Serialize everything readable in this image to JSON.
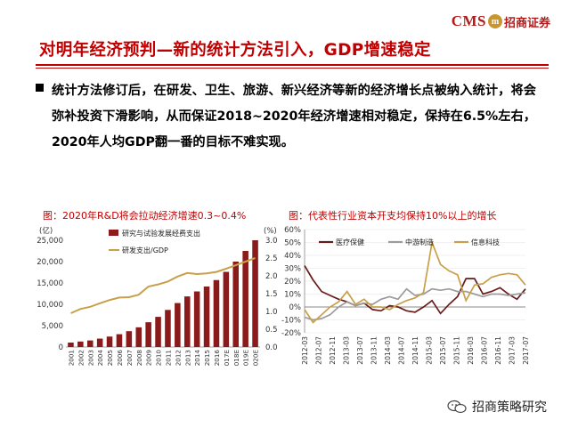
{
  "header": {
    "title": "对明年经济预判—新的统计方法引入，GDP增速稳定",
    "logo_brand": "CMS",
    "logo_mark": "m",
    "logo_cn": "招商证券"
  },
  "body": {
    "bullet_text": "统计方法修订后，在研发、卫生、旅游、新兴经济等新的经济增长点被纳入统计，将会弥补投资下滑影响，从而保证2018~2020年经济增速相对稳定，保持在6.5%左右，2020年人均GDP翻一番的目标不难实现。"
  },
  "watermark": {
    "text": "招商策略研究"
  },
  "colors": {
    "accent": "#c00000",
    "bar": "#8b1a1a",
    "gold": "#c8a04a",
    "gray": "#9b9b9b"
  },
  "chart_data": [
    {
      "type": "bar",
      "caption": "图：2020年R&D将会拉动经济增速0.3~0.4%",
      "left_unit": "(亿)",
      "right_unit": "(%)",
      "categories": [
        "2001",
        "2002",
        "2003",
        "2004",
        "2005",
        "2006",
        "2007",
        "2008",
        "2009",
        "2010",
        "2011",
        "2012",
        "2013",
        "2014",
        "2015",
        "2016",
        "2017E",
        "2018E",
        "2019E",
        "2020E"
      ],
      "ylim": [
        0,
        25000
      ],
      "y_ticks": [
        "0",
        "5,000",
        "10,000",
        "15,000",
        "20,000",
        "25,000"
      ],
      "y2lim": [
        0,
        3.0
      ],
      "y2_ticks": [
        "0.0",
        "0.5",
        "1.0",
        "1.5",
        "2.0",
        "2.5",
        "3.0"
      ],
      "series": [
        {
          "name": "研究与试验发展经费支出",
          "kind": "bar",
          "axis": "left",
          "values": [
            1043,
            1288,
            1540,
            1966,
            2450,
            3003,
            3710,
            4616,
            5802,
            7063,
            8687,
            10298,
            11847,
            13016,
            14170,
            15677,
            17600,
            20000,
            22500,
            25000
          ]
        },
        {
          "name": "研发支出/GDP",
          "kind": "line",
          "axis": "right",
          "values": [
            0.95,
            1.07,
            1.13,
            1.23,
            1.32,
            1.39,
            1.4,
            1.47,
            1.7,
            1.76,
            1.84,
            1.98,
            2.08,
            2.05,
            2.07,
            2.11,
            2.2,
            2.3,
            2.4,
            2.5
          ]
        }
      ]
    },
    {
      "type": "line",
      "caption": "图：代表性行业资本开支均保持10%以上的增长",
      "ylim": [
        -20,
        60
      ],
      "y_ticks": [
        "-20%",
        "-10%",
        "0%",
        "10%",
        "20%",
        "30%",
        "40%",
        "50%",
        "60%"
      ],
      "x_ticks": [
        "2012-03",
        "2012-07",
        "2012-11",
        "2013-03",
        "2013-07",
        "2013-11",
        "2014-03",
        "2014-07",
        "2014-11",
        "2015-03",
        "2015-07",
        "2015-11",
        "2016-03",
        "2016-07",
        "2016-11",
        "2017-03",
        "2017-07"
      ],
      "series": [
        {
          "name": "医疗保健",
          "color": "#6b1a1a",
          "values": [
            32,
            21,
            12,
            9,
            6,
            4,
            1,
            3,
            -2,
            -3,
            1,
            0,
            -3,
            -4,
            0,
            5,
            -5,
            2,
            8,
            22,
            22,
            10,
            12,
            15,
            10,
            6,
            14
          ]
        },
        {
          "name": "中游制造",
          "color": "#9b9b9b",
          "values": [
            -8,
            -10,
            -9,
            -6,
            0,
            4,
            1,
            3,
            2,
            6,
            8,
            6,
            14,
            9,
            10,
            14,
            13,
            14,
            12,
            12,
            10,
            8,
            10,
            10,
            9,
            10,
            11
          ]
        },
        {
          "name": "信息科技",
          "color": "#c8a04a",
          "values": [
            -2,
            -12,
            -6,
            0,
            4,
            12,
            2,
            6,
            0,
            0,
            -2,
            2,
            5,
            7,
            11,
            50,
            33,
            28,
            25,
            5,
            17,
            18,
            23,
            25,
            26,
            25,
            17
          ]
        }
      ]
    }
  ]
}
